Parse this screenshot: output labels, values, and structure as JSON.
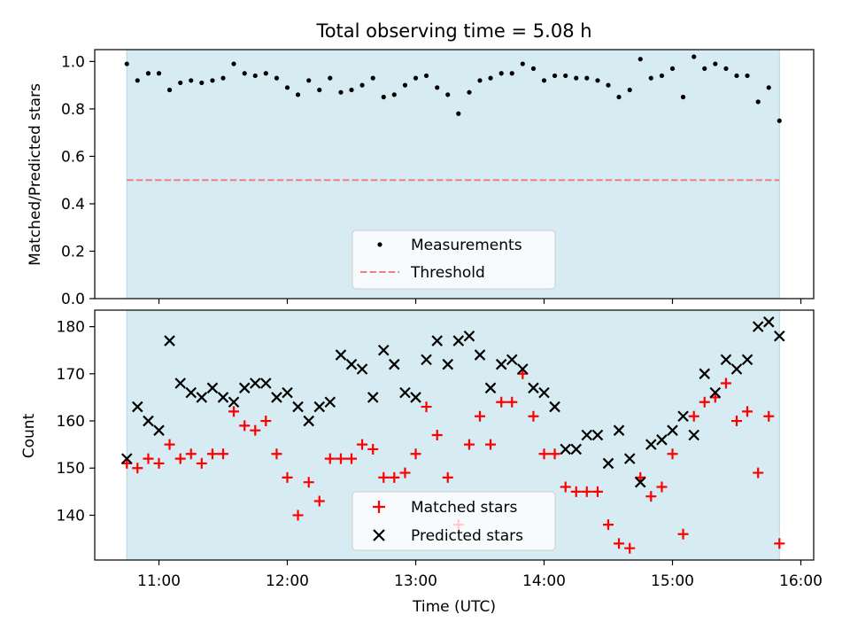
{
  "figure_title": "Total observing time = 5.08 h",
  "colors": {
    "shade": "#add8e6",
    "threshold": "#f08080",
    "matched": "#ff0000",
    "predicted": "#000000",
    "measurement": "#000000"
  },
  "chart_data": [
    {
      "type": "scatter",
      "ylabel": "Matched/Predicted stars",
      "ylim": [
        0.0,
        1.05
      ],
      "yticks": [
        0.0,
        0.2,
        0.4,
        0.6,
        0.8,
        1.0
      ],
      "ytick_labels": [
        "0.0",
        "0.2",
        "0.4",
        "0.6",
        "0.8",
        "1.0"
      ],
      "xlim_hours": [
        10.5,
        16.1
      ],
      "shaded_span_hours": [
        10.75,
        15.833
      ],
      "threshold": 0.5,
      "legend": {
        "placement": "lower center",
        "entries": [
          "Measurements",
          "Threshold"
        ]
      },
      "series": [
        {
          "name": "Measurements",
          "marker": "dot",
          "x": [
            10.75,
            10.833,
            10.917,
            11.0,
            11.083,
            11.167,
            11.25,
            11.333,
            11.417,
            11.5,
            11.583,
            11.667,
            11.75,
            11.833,
            11.917,
            12.0,
            12.083,
            12.167,
            12.25,
            12.333,
            12.417,
            12.5,
            12.583,
            12.667,
            12.75,
            12.833,
            12.917,
            13.0,
            13.083,
            13.167,
            13.25,
            13.333,
            13.417,
            13.5,
            13.583,
            13.667,
            13.75,
            13.833,
            13.917,
            14.0,
            14.083,
            14.167,
            14.25,
            14.333,
            14.417,
            14.5,
            14.583,
            14.667,
            14.75,
            14.833,
            14.917,
            15.0,
            15.083,
            15.167,
            15.25,
            15.333,
            15.417,
            15.5,
            15.583,
            15.667,
            15.75,
            15.833
          ],
          "y": [
            0.99,
            0.92,
            0.95,
            0.95,
            0.88,
            0.91,
            0.92,
            0.91,
            0.92,
            0.93,
            0.99,
            0.95,
            0.94,
            0.95,
            0.93,
            0.89,
            0.86,
            0.92,
            0.88,
            0.93,
            0.87,
            0.88,
            0.9,
            0.93,
            0.85,
            0.86,
            0.9,
            0.93,
            0.94,
            0.89,
            0.86,
            0.78,
            0.87,
            0.92,
            0.93,
            0.95,
            0.95,
            0.99,
            0.97,
            0.92,
            0.94,
            0.94,
            0.93,
            0.93,
            0.92,
            0.9,
            0.85,
            0.88,
            1.01,
            0.93,
            0.94,
            0.97,
            0.85,
            1.02,
            0.97,
            0.99,
            0.97,
            0.94,
            0.94,
            0.83,
            0.89,
            0.75
          ]
        },
        {
          "name": "Threshold",
          "line_style": "dashed",
          "x": [
            10.75,
            15.833
          ],
          "y": [
            0.5,
            0.5
          ]
        }
      ]
    },
    {
      "type": "scatter",
      "ylabel": "Count",
      "xlabel": "Time (UTC)",
      "ylim": [
        130.5,
        183.5
      ],
      "yticks": [
        140,
        150,
        160,
        170,
        180
      ],
      "ytick_labels": [
        "140",
        "150",
        "160",
        "170",
        "180"
      ],
      "xlim_hours": [
        10.5,
        16.1
      ],
      "xticks_hours": [
        11,
        12,
        13,
        14,
        15,
        16
      ],
      "xtick_labels": [
        "11:00",
        "12:00",
        "13:00",
        "14:00",
        "15:00",
        "16:00"
      ],
      "shaded_span_hours": [
        10.75,
        15.833
      ],
      "legend": {
        "placement": "lower center",
        "entries": [
          "Matched stars",
          "Predicted stars"
        ]
      },
      "series": [
        {
          "name": "Matched stars",
          "marker": "plus",
          "x": [
            10.75,
            10.833,
            10.917,
            11.0,
            11.083,
            11.167,
            11.25,
            11.333,
            11.417,
            11.5,
            11.583,
            11.667,
            11.75,
            11.833,
            11.917,
            12.0,
            12.083,
            12.167,
            12.25,
            12.333,
            12.417,
            12.5,
            12.583,
            12.667,
            12.75,
            12.833,
            12.917,
            13.0,
            13.083,
            13.167,
            13.25,
            13.333,
            13.417,
            13.5,
            13.583,
            13.667,
            13.75,
            13.833,
            13.917,
            14.0,
            14.083,
            14.167,
            14.25,
            14.333,
            14.417,
            14.5,
            14.583,
            14.667,
            14.75,
            14.833,
            14.917,
            15.0,
            15.083,
            15.167,
            15.25,
            15.333,
            15.417,
            15.5,
            15.583,
            15.667,
            15.75,
            15.833
          ],
          "y": [
            151,
            150,
            152,
            151,
            155,
            152,
            153,
            151,
            153,
            153,
            162,
            159,
            158,
            160,
            153,
            148,
            140,
            147,
            143,
            152,
            152,
            152,
            155,
            154,
            148,
            148,
            149,
            153,
            163,
            157,
            148,
            138,
            155,
            161,
            155,
            164,
            164,
            170,
            161,
            153,
            153,
            146,
            145,
            145,
            145,
            138,
            134,
            133,
            148,
            144,
            146,
            153,
            136,
            161,
            164,
            165,
            168,
            160,
            162,
            149,
            161,
            134
          ]
        },
        {
          "name": "Predicted stars",
          "marker": "x",
          "x": [
            10.75,
            10.833,
            10.917,
            11.0,
            11.083,
            11.167,
            11.25,
            11.333,
            11.417,
            11.5,
            11.583,
            11.667,
            11.75,
            11.833,
            11.917,
            12.0,
            12.083,
            12.167,
            12.25,
            12.333,
            12.417,
            12.5,
            12.583,
            12.667,
            12.75,
            12.833,
            12.917,
            13.0,
            13.083,
            13.167,
            13.25,
            13.333,
            13.417,
            13.5,
            13.583,
            13.667,
            13.75,
            13.833,
            13.917,
            14.0,
            14.083,
            14.167,
            14.25,
            14.333,
            14.417,
            14.5,
            14.583,
            14.667,
            14.75,
            14.833,
            14.917,
            15.0,
            15.083,
            15.167,
            15.25,
            15.333,
            15.417,
            15.5,
            15.583,
            15.667,
            15.75,
            15.833
          ],
          "y": [
            152,
            163,
            160,
            158,
            177,
            168,
            166,
            165,
            167,
            165,
            164,
            167,
            168,
            168,
            165,
            166,
            163,
            160,
            163,
            164,
            174,
            172,
            171,
            165,
            175,
            172,
            166,
            165,
            173,
            177,
            172,
            177,
            178,
            174,
            167,
            172,
            173,
            171,
            167,
            166,
            163,
            154,
            154,
            157,
            157,
            151,
            158,
            152,
            147,
            155,
            156,
            158,
            161,
            157,
            170,
            166,
            173,
            171,
            173,
            180,
            181,
            178
          ]
        }
      ]
    }
  ]
}
